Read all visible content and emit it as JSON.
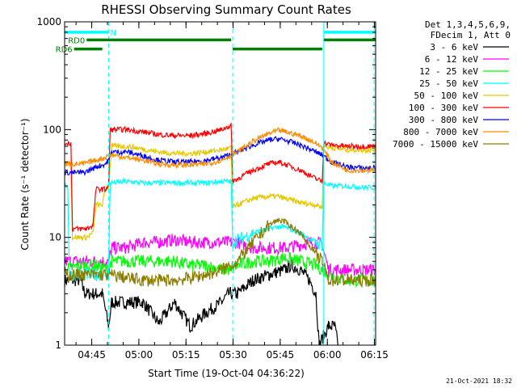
{
  "chart_data": {
    "type": "line",
    "title": "RHESSI Observing Summary Count Rates",
    "xlabel": "Start Time (19-Oct-04 04:36:22)",
    "ylabel": "Count Rate (s⁻¹ detector⁻¹)",
    "yscale": "log",
    "ylim": [
      1,
      1000
    ],
    "xlim_minutes": [
      0,
      99
    ],
    "y_ticks": [
      "1",
      "10",
      "100",
      "1000"
    ],
    "x_ticks": [
      {
        "label": "04:45",
        "t": 8.63
      },
      {
        "label": "05:00",
        "t": 23.63
      },
      {
        "label": "05:15",
        "t": 38.63
      },
      {
        "label": "05:30",
        "t": 53.63
      },
      {
        "label": "05:45",
        "t": 68.63
      },
      {
        "label": "06:00",
        "t": 83.63
      },
      {
        "label": "06:15",
        "t": 98.63
      }
    ],
    "legend_header": [
      "Det 1,3,4,5,6,9,",
      "FDecim 1, Att 0"
    ],
    "series": [
      {
        "name": "3 - 6 keV",
        "color": "#000000",
        "points": [
          [
            0,
            4
          ],
          [
            5,
            4
          ],
          [
            6.5,
            3
          ],
          [
            10,
            3
          ],
          [
            12,
            3
          ],
          [
            14,
            1.5
          ],
          [
            15,
            2.5
          ],
          [
            20,
            2.5
          ],
          [
            25,
            2.5
          ],
          [
            30,
            1.6
          ],
          [
            35,
            2.5
          ],
          [
            40,
            1.5
          ],
          [
            45,
            2
          ],
          [
            50,
            2.5
          ],
          [
            52,
            3
          ],
          [
            55,
            3
          ],
          [
            60,
            4
          ],
          [
            65,
            4.5
          ],
          [
            70,
            5
          ],
          [
            72,
            5.5
          ],
          [
            75,
            5
          ],
          [
            78,
            4
          ],
          [
            80,
            3
          ],
          [
            81,
            1
          ],
          [
            84,
            1.5
          ],
          [
            86,
            1.5
          ],
          [
            87,
            1
          ]
        ]
      },
      {
        "name": "6 - 12 keV",
        "color": "#ff00ff",
        "points": [
          [
            0,
            6
          ],
          [
            5,
            6
          ],
          [
            10,
            6
          ],
          [
            14,
            6
          ],
          [
            15,
            8
          ],
          [
            20,
            8
          ],
          [
            25,
            9
          ],
          [
            30,
            9
          ],
          [
            35,
            9.5
          ],
          [
            40,
            9
          ],
          [
            45,
            9
          ],
          [
            50,
            9
          ],
          [
            53,
            9
          ],
          [
            55,
            9
          ],
          [
            60,
            8
          ],
          [
            65,
            8
          ],
          [
            70,
            8
          ],
          [
            75,
            8.5
          ],
          [
            78,
            9
          ],
          [
            80,
            9
          ],
          [
            82,
            8.5
          ],
          [
            84,
            5
          ],
          [
            90,
            5
          ],
          [
            95,
            5
          ],
          [
            99,
            5
          ]
        ]
      },
      {
        "name": "12 - 25 keV",
        "color": "#00ff00",
        "points": [
          [
            0,
            5
          ],
          [
            5,
            5.5
          ],
          [
            10,
            5.5
          ],
          [
            14,
            5
          ],
          [
            15,
            6
          ],
          [
            20,
            6
          ],
          [
            25,
            6
          ],
          [
            30,
            6
          ],
          [
            35,
            6
          ],
          [
            40,
            5.5
          ],
          [
            45,
            5.5
          ],
          [
            50,
            5
          ],
          [
            53,
            5
          ],
          [
            55,
            5.5
          ],
          [
            60,
            6
          ],
          [
            65,
            6
          ],
          [
            70,
            6.5
          ],
          [
            75,
            6
          ],
          [
            80,
            5.5
          ],
          [
            82,
            5
          ],
          [
            84,
            4.5
          ],
          [
            90,
            4
          ],
          [
            95,
            4
          ],
          [
            99,
            4
          ]
        ]
      },
      {
        "name": "25 - 50 keV",
        "color": "#00ffff",
        "points": [
          [
            0,
            30
          ],
          [
            1,
            30
          ],
          [
            1.5,
            4.5
          ],
          [
            10,
            4.5
          ],
          [
            14,
            4.5
          ],
          [
            14.5,
            32
          ],
          [
            20,
            33
          ],
          [
            25,
            32
          ],
          [
            30,
            32
          ],
          [
            35,
            32
          ],
          [
            40,
            32
          ],
          [
            45,
            32
          ],
          [
            50,
            33
          ],
          [
            53,
            33
          ],
          [
            53.5,
            9
          ],
          [
            55,
            9.5
          ],
          [
            60,
            11
          ],
          [
            65,
            12
          ],
          [
            68,
            12.5
          ],
          [
            70,
            12.5
          ],
          [
            75,
            11
          ],
          [
            80,
            9
          ],
          [
            82,
            8.5
          ],
          [
            82.5,
            32
          ],
          [
            85,
            30
          ],
          [
            90,
            30
          ],
          [
            95,
            29
          ],
          [
            99,
            29
          ]
        ]
      },
      {
        "name": "50 - 100 keV",
        "color": "#e6c800",
        "points": [
          [
            0,
            48
          ],
          [
            2,
            48
          ],
          [
            2.5,
            10
          ],
          [
            7,
            10
          ],
          [
            9,
            11
          ],
          [
            10,
            20
          ],
          [
            11,
            20
          ],
          [
            12,
            20
          ],
          [
            13,
            28
          ],
          [
            14,
            30
          ],
          [
            15,
            70
          ],
          [
            20,
            70
          ],
          [
            25,
            66
          ],
          [
            30,
            62
          ],
          [
            35,
            60
          ],
          [
            40,
            60
          ],
          [
            45,
            62
          ],
          [
            50,
            65
          ],
          [
            53,
            68
          ],
          [
            53.5,
            19
          ],
          [
            55,
            20
          ],
          [
            60,
            23
          ],
          [
            65,
            24
          ],
          [
            68,
            24
          ],
          [
            70,
            23
          ],
          [
            75,
            21
          ],
          [
            80,
            20
          ],
          [
            82,
            19
          ],
          [
            82.5,
            70
          ],
          [
            85,
            68
          ],
          [
            90,
            65
          ],
          [
            95,
            65
          ],
          [
            99,
            65
          ]
        ]
      },
      {
        "name": "100 - 300 keV",
        "color": "#ff0000",
        "points": [
          [
            0,
            75
          ],
          [
            2,
            75
          ],
          [
            2.5,
            12
          ],
          [
            7,
            12
          ],
          [
            9,
            13
          ],
          [
            10,
            28
          ],
          [
            13,
            28
          ],
          [
            14,
            30
          ],
          [
            14.5,
            100
          ],
          [
            20,
            100
          ],
          [
            25,
            95
          ],
          [
            30,
            90
          ],
          [
            35,
            88
          ],
          [
            40,
            88
          ],
          [
            45,
            92
          ],
          [
            50,
            100
          ],
          [
            53,
            110
          ],
          [
            53.5,
            33
          ],
          [
            55,
            35
          ],
          [
            60,
            42
          ],
          [
            65,
            48
          ],
          [
            68,
            50
          ],
          [
            70,
            48
          ],
          [
            75,
            42
          ],
          [
            80,
            35
          ],
          [
            82,
            33
          ],
          [
            82.5,
            75
          ],
          [
            85,
            72
          ],
          [
            90,
            70
          ],
          [
            95,
            70
          ],
          [
            99,
            70
          ]
        ]
      },
      {
        "name": "300 - 800 keV",
        "color": "#0000ff",
        "points": [
          [
            0,
            40
          ],
          [
            3,
            40
          ],
          [
            6,
            40
          ],
          [
            8,
            42
          ],
          [
            10,
            45
          ],
          [
            13,
            48
          ],
          [
            14,
            52
          ],
          [
            15,
            62
          ],
          [
            20,
            62
          ],
          [
            25,
            57
          ],
          [
            30,
            52
          ],
          [
            35,
            50
          ],
          [
            40,
            50
          ],
          [
            45,
            52
          ],
          [
            50,
            55
          ],
          [
            55,
            62
          ],
          [
            60,
            72
          ],
          [
            65,
            80
          ],
          [
            68,
            82
          ],
          [
            70,
            80
          ],
          [
            75,
            72
          ],
          [
            80,
            62
          ],
          [
            82,
            58
          ],
          [
            85,
            50
          ],
          [
            90,
            45
          ],
          [
            95,
            44
          ],
          [
            99,
            44
          ]
        ]
      },
      {
        "name": "800 - 7000 keV",
        "color": "#ff8c00",
        "points": [
          [
            0,
            48
          ],
          [
            3,
            48
          ],
          [
            6,
            48
          ],
          [
            8,
            50
          ],
          [
            10,
            52
          ],
          [
            13,
            55
          ],
          [
            14,
            58
          ],
          [
            15,
            58
          ],
          [
            20,
            55
          ],
          [
            25,
            52
          ],
          [
            30,
            48
          ],
          [
            35,
            47
          ],
          [
            40,
            47
          ],
          [
            45,
            48
          ],
          [
            50,
            52
          ],
          [
            55,
            62
          ],
          [
            60,
            78
          ],
          [
            65,
            92
          ],
          [
            68,
            98
          ],
          [
            70,
            96
          ],
          [
            75,
            88
          ],
          [
            80,
            75
          ],
          [
            82,
            68
          ],
          [
            85,
            50
          ],
          [
            90,
            42
          ],
          [
            95,
            42
          ],
          [
            99,
            42
          ]
        ]
      },
      {
        "name": "7000 - 15000 keV",
        "color": "#8b7d00",
        "points": [
          [
            0,
            4.5
          ],
          [
            5,
            4.5
          ],
          [
            10,
            4.5
          ],
          [
            15,
            4.5
          ],
          [
            20,
            4.2
          ],
          [
            25,
            4
          ],
          [
            30,
            4
          ],
          [
            35,
            4
          ],
          [
            40,
            4.2
          ],
          [
            45,
            4.5
          ],
          [
            50,
            5
          ],
          [
            55,
            6
          ],
          [
            60,
            9
          ],
          [
            65,
            13
          ],
          [
            68,
            14.5
          ],
          [
            70,
            14
          ],
          [
            75,
            11
          ],
          [
            80,
            7
          ],
          [
            82,
            6
          ],
          [
            84,
            4
          ],
          [
            90,
            4
          ],
          [
            95,
            4
          ],
          [
            99,
            4
          ]
        ]
      }
    ],
    "attenuator_bars": [
      {
        "label": "N",
        "color": "#00ffff",
        "t_start": 0,
        "t_end": 14,
        "level": 800
      },
      {
        "label": "",
        "color": "#00ffff",
        "t_start": 82.5,
        "t_end": 99,
        "level": 800
      }
    ],
    "decimation_bars": [
      {
        "label": "RD0",
        "color": "#008000",
        "t_start": 7,
        "t_end": 53,
        "level": 680
      },
      {
        "label": "RD6",
        "color": "#008000",
        "t_start": 3,
        "t_end": 12,
        "level": 560
      },
      {
        "label": "",
        "color": "#008000",
        "t_start": 53.5,
        "t_end": 82,
        "level": 560
      },
      {
        "label": "",
        "color": "#008000",
        "t_start": 82.5,
        "t_end": 99,
        "level": 680
      }
    ],
    "markers_solid": [
      0,
      82.5
    ],
    "markers_dashed": [
      14,
      53.5,
      98.5
    ],
    "grid": false,
    "legend_position": "right"
  },
  "footer": {
    "timestamp": "21-Oct-2021 18:32"
  }
}
